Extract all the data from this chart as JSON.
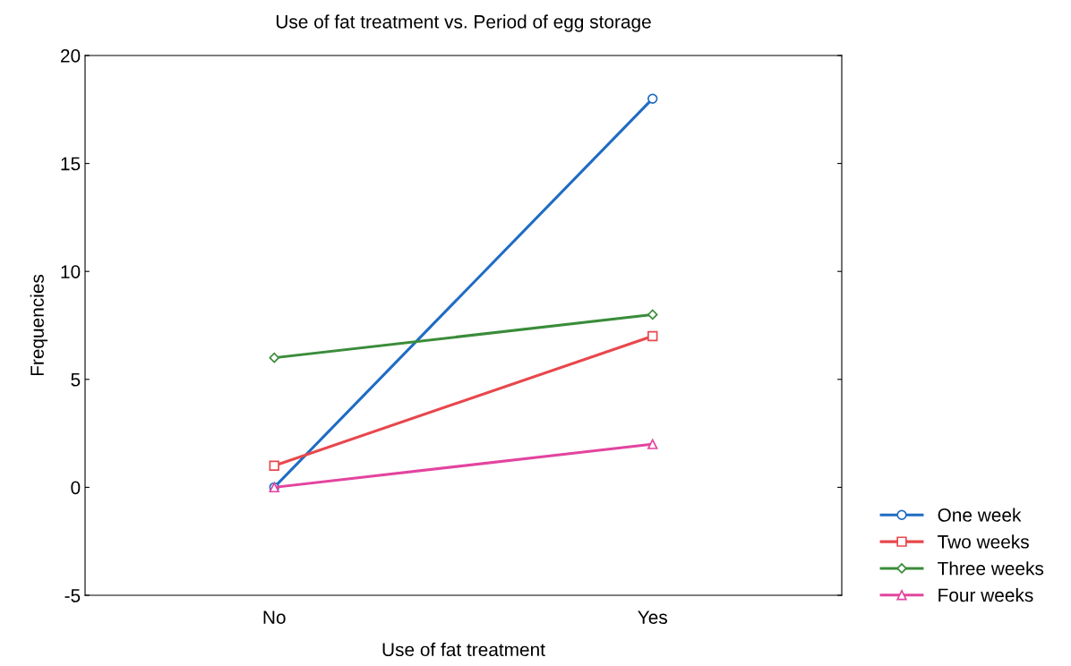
{
  "chart_data": {
    "type": "line",
    "title": "Use of fat treatment vs. Period of egg storage",
    "xlabel": "Use of fat treatment",
    "ylabel": "Frequencies",
    "categories": [
      "No",
      "Yes"
    ],
    "series": [
      {
        "name": "One week",
        "color": "#1f6cc4",
        "marker": "circle",
        "values": [
          0,
          18
        ]
      },
      {
        "name": "Two weeks",
        "color": "#e8474c",
        "marker": "square",
        "values": [
          1,
          7
        ]
      },
      {
        "name": "Three weeks",
        "color": "#3a8c3a",
        "marker": "diamond",
        "values": [
          6,
          8
        ]
      },
      {
        "name": "Four weeks",
        "color": "#e3449f",
        "marker": "triangle",
        "values": [
          0,
          2
        ]
      }
    ],
    "ylim": [
      -5,
      20
    ],
    "yticks": [
      -5,
      0,
      5,
      10,
      15,
      20
    ],
    "grid": false,
    "legend": "bottom right",
    "line_style": "solid"
  }
}
